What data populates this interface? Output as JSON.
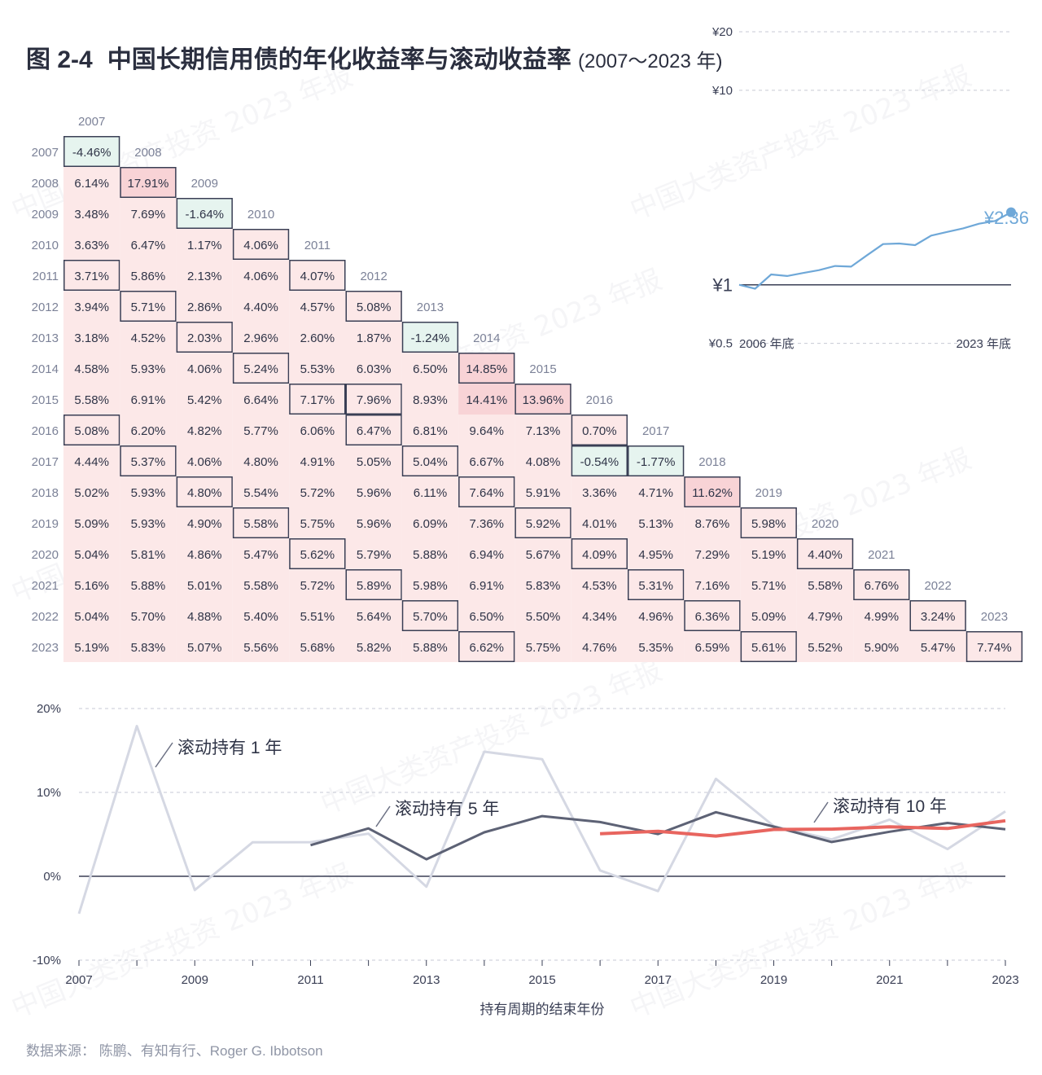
{
  "title": {
    "number": "图 2-4",
    "text": "中国长期信用债的年化收益率与滚动收益率",
    "range": "(2007～2023 年)"
  },
  "source": "数据来源： 陈鹏、有知有行、Roger G. Ibbotson",
  "watermark": "中国大类资产投资 2023 年报",
  "chart_data": [
    {
      "type": "heatmap",
      "title": "",
      "row_labels": [
        "2007",
        "2008",
        "2009",
        "2010",
        "2011",
        "2012",
        "2013",
        "2014",
        "2015",
        "2016",
        "2017",
        "2018",
        "2019",
        "2020",
        "2021",
        "2022",
        "2023"
      ],
      "col_labels": [
        "2007",
        "2008",
        "2009",
        "2010",
        "2011",
        "2012",
        "2013",
        "2014",
        "2015",
        "2016",
        "2017",
        "2018",
        "2019",
        "2020",
        "2021",
        "2022",
        "2023"
      ],
      "cells": [
        [
          "-4.46%"
        ],
        [
          "6.14%",
          "17.91%"
        ],
        [
          "3.48%",
          "7.69%",
          "-1.64%"
        ],
        [
          "3.63%",
          "6.47%",
          "1.17%",
          "4.06%"
        ],
        [
          "3.71%",
          "5.86%",
          "2.13%",
          "4.06%",
          "4.07%"
        ],
        [
          "3.94%",
          "5.71%",
          "2.86%",
          "4.40%",
          "4.57%",
          "5.08%"
        ],
        [
          "3.18%",
          "4.52%",
          "2.03%",
          "2.96%",
          "2.60%",
          "1.87%",
          "-1.24%"
        ],
        [
          "4.58%",
          "5.93%",
          "4.06%",
          "5.24%",
          "5.53%",
          "6.03%",
          "6.50%",
          "14.85%"
        ],
        [
          "5.58%",
          "6.91%",
          "5.42%",
          "6.64%",
          "7.17%",
          "7.96%",
          "8.93%",
          "14.41%",
          "13.96%"
        ],
        [
          "5.08%",
          "6.20%",
          "4.82%",
          "5.77%",
          "6.06%",
          "6.47%",
          "6.81%",
          "9.64%",
          "7.13%",
          "0.70%"
        ],
        [
          "4.44%",
          "5.37%",
          "4.06%",
          "4.80%",
          "4.91%",
          "5.05%",
          "5.04%",
          "6.67%",
          "4.08%",
          "-0.54%",
          "-1.77%"
        ],
        [
          "5.02%",
          "5.93%",
          "4.80%",
          "5.54%",
          "5.72%",
          "5.96%",
          "6.11%",
          "7.64%",
          "5.91%",
          "3.36%",
          "4.71%",
          "11.62%"
        ],
        [
          "5.09%",
          "5.93%",
          "4.90%",
          "5.58%",
          "5.75%",
          "5.96%",
          "6.09%",
          "7.36%",
          "5.92%",
          "4.01%",
          "5.13%",
          "8.76%",
          "5.98%"
        ],
        [
          "5.04%",
          "5.81%",
          "4.86%",
          "5.47%",
          "5.62%",
          "5.79%",
          "5.88%",
          "6.94%",
          "5.67%",
          "4.09%",
          "4.95%",
          "7.29%",
          "5.19%",
          "4.40%"
        ],
        [
          "5.16%",
          "5.88%",
          "5.01%",
          "5.58%",
          "5.72%",
          "5.89%",
          "5.98%",
          "6.91%",
          "5.83%",
          "4.53%",
          "5.31%",
          "7.16%",
          "5.71%",
          "5.58%",
          "6.76%"
        ],
        [
          "5.04%",
          "5.70%",
          "4.88%",
          "5.40%",
          "5.51%",
          "5.64%",
          "5.70%",
          "6.50%",
          "5.50%",
          "4.34%",
          "4.96%",
          "6.36%",
          "5.09%",
          "4.79%",
          "4.99%",
          "3.24%"
        ],
        [
          "5.19%",
          "5.83%",
          "5.07%",
          "5.56%",
          "5.68%",
          "5.82%",
          "5.88%",
          "6.62%",
          "5.75%",
          "4.76%",
          "5.35%",
          "6.59%",
          "5.61%",
          "5.52%",
          "5.90%",
          "5.47%",
          "7.74%"
        ]
      ],
      "highlight_colors": {
        "positive": "#fce8e8",
        "strong_positive": "#f8d3d6",
        "negative": "#e6f4ef"
      },
      "boxed_cells": [
        [
          0,
          0
        ],
        [
          1,
          1
        ],
        [
          2,
          2
        ],
        [
          3,
          3
        ],
        [
          4,
          0
        ],
        [
          4,
          4
        ],
        [
          5,
          1
        ],
        [
          5,
          5
        ],
        [
          6,
          2
        ],
        [
          6,
          6
        ],
        [
          7,
          3
        ],
        [
          7,
          7
        ],
        [
          8,
          4
        ],
        [
          8,
          5
        ],
        [
          8,
          8
        ],
        [
          9,
          0
        ],
        [
          9,
          5
        ],
        [
          9,
          9
        ],
        [
          10,
          1
        ],
        [
          10,
          6
        ],
        [
          10,
          9
        ],
        [
          10,
          10
        ],
        [
          11,
          2
        ],
        [
          11,
          7
        ],
        [
          11,
          11
        ],
        [
          12,
          3
        ],
        [
          12,
          8
        ],
        [
          12,
          12
        ],
        [
          13,
          4
        ],
        [
          13,
          9
        ],
        [
          13,
          13
        ],
        [
          14,
          5
        ],
        [
          14,
          10
        ],
        [
          14,
          14
        ],
        [
          15,
          6
        ],
        [
          15,
          11
        ],
        [
          15,
          15
        ],
        [
          16,
          7
        ],
        [
          16,
          12
        ],
        [
          16,
          16
        ]
      ]
    },
    {
      "type": "line",
      "title": "",
      "yscale": "log",
      "y_ticks": [
        "¥20",
        "¥10",
        "¥1",
        "¥0.5"
      ],
      "x_ticks": [
        "2006 年底",
        "2023 年底"
      ],
      "end_label": "¥2.36",
      "x": [
        2006,
        2007,
        2008,
        2009,
        2010,
        2011,
        2012,
        2013,
        2014,
        2015,
        2016,
        2017,
        2018,
        2019,
        2020,
        2021,
        2022,
        2023
      ],
      "values": [
        1.0,
        0.955,
        1.13,
        1.11,
        1.15,
        1.19,
        1.25,
        1.24,
        1.42,
        1.62,
        1.63,
        1.6,
        1.79,
        1.87,
        1.95,
        2.06,
        2.13,
        2.36
      ],
      "color": "#6fa8d8"
    },
    {
      "type": "line",
      "title": "",
      "xlabel": "持有周期的结束年份",
      "ylabel": "",
      "ylim": [
        -10,
        20
      ],
      "y_ticks": [
        "20%",
        "10%",
        "0%",
        "-10%"
      ],
      "x_ticks": [
        "2007",
        "2009",
        "2011",
        "2013",
        "2015",
        "2017",
        "2019",
        "2021",
        "2023"
      ],
      "series": [
        {
          "name": "滚动持有 1 年",
          "color": "#d5d8e3",
          "x": [
            2007,
            2008,
            2009,
            2010,
            2011,
            2012,
            2013,
            2014,
            2015,
            2016,
            2017,
            2018,
            2019,
            2020,
            2021,
            2022,
            2023
          ],
          "values": [
            -4.46,
            17.91,
            -1.64,
            4.06,
            4.07,
            5.08,
            -1.24,
            14.85,
            13.96,
            0.7,
            -1.77,
            11.62,
            5.98,
            4.4,
            6.76,
            3.24,
            7.74
          ]
        },
        {
          "name": "滚动持有 5 年",
          "color": "#5d6275",
          "x": [
            2011,
            2012,
            2013,
            2014,
            2015,
            2016,
            2017,
            2018,
            2019,
            2020,
            2021,
            2022,
            2023
          ],
          "values": [
            3.71,
            5.71,
            2.03,
            5.24,
            7.17,
            6.47,
            5.04,
            7.64,
            5.92,
            4.09,
            5.31,
            6.36,
            5.61
          ]
        },
        {
          "name": "滚动持有 10 年",
          "color": "#e8655f",
          "x": [
            2016,
            2017,
            2018,
            2019,
            2020,
            2021,
            2022,
            2023
          ],
          "values": [
            5.08,
            5.37,
            4.8,
            5.58,
            5.62,
            5.89,
            5.7,
            6.62
          ]
        }
      ]
    }
  ]
}
